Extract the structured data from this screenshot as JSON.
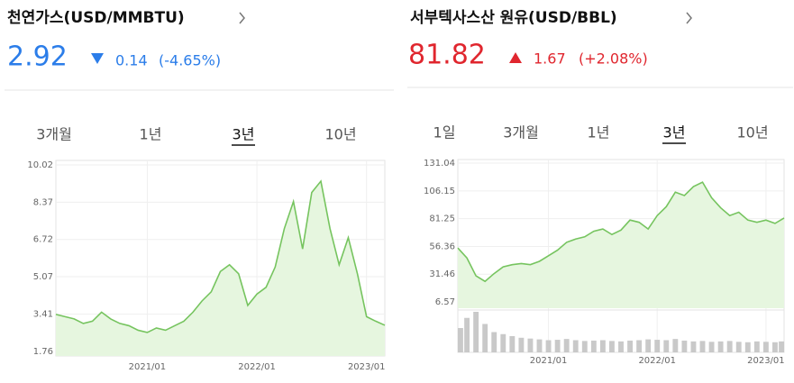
{
  "chart_data": [
    {
      "type": "line",
      "title": "천연가스(USD/MMBTU)",
      "price": 2.92,
      "change": 0.14,
      "change_pct": "(-4.65%)",
      "tabs": [
        "3개월",
        "1년",
        "3년",
        "10년"
      ],
      "selected_tab": 2,
      "color": "#76c45f",
      "area_color": "#e6f6df",
      "price_color": "#2b7de9",
      "x": [
        "2020/03",
        "2020/04",
        "2020/05",
        "2020/06",
        "2020/07",
        "2020/08",
        "2020/09",
        "2020/10",
        "2020/11",
        "2020/12",
        "2021/01",
        "2021/02",
        "2021/03",
        "2021/04",
        "2021/05",
        "2021/06",
        "2021/07",
        "2021/08",
        "2021/09",
        "2021/10",
        "2021/11",
        "2021/12",
        "2022/01",
        "2022/02",
        "2022/03",
        "2022/04",
        "2022/05",
        "2022/06",
        "2022/07",
        "2022/08",
        "2022/09",
        "2022/10",
        "2022/11",
        "2022/12",
        "2023/01",
        "2023/02",
        "2023/03"
      ],
      "values": [
        3.4,
        3.3,
        3.2,
        3.0,
        3.1,
        3.5,
        3.2,
        3.0,
        2.9,
        2.7,
        2.6,
        2.8,
        2.7,
        2.9,
        3.1,
        3.5,
        4.0,
        4.4,
        5.3,
        5.6,
        5.2,
        3.8,
        4.3,
        4.6,
        5.5,
        7.2,
        8.4,
        6.3,
        8.8,
        9.3,
        7.2,
        5.6,
        6.8,
        5.2,
        3.3,
        3.1,
        2.92
      ],
      "xlim": [
        "2020/03",
        "2023/03"
      ],
      "xticks": [
        "2021/01",
        "2022/01",
        "2023/01"
      ],
      "ylim": [
        1.56,
        10.22
      ],
      "yticks": [
        1.76,
        3.41,
        5.07,
        6.72,
        8.37,
        10.02
      ],
      "grid": true
    },
    {
      "type": "line",
      "title": "서부텍사스산 원유(USD/BBL)",
      "price": 81.82,
      "change": 1.67,
      "change_pct": "(+2.08%)",
      "tabs": [
        "1일",
        "3개월",
        "1년",
        "3년",
        "10년"
      ],
      "selected_tab": 3,
      "color": "#76c45f",
      "area_color": "#e6f6df",
      "price_color": "#e0262e",
      "x": [
        "2020/03",
        "2020/04",
        "2020/05",
        "2020/06",
        "2020/07",
        "2020/08",
        "2020/09",
        "2020/10",
        "2020/11",
        "2020/12",
        "2021/01",
        "2021/02",
        "2021/03",
        "2021/04",
        "2021/05",
        "2021/06",
        "2021/07",
        "2021/08",
        "2021/09",
        "2021/10",
        "2021/11",
        "2021/12",
        "2022/01",
        "2022/02",
        "2022/03",
        "2022/04",
        "2022/05",
        "2022/06",
        "2022/07",
        "2022/08",
        "2022/09",
        "2022/10",
        "2022/11",
        "2022/12",
        "2023/01",
        "2023/02",
        "2023/03"
      ],
      "values": [
        55,
        46,
        30,
        25,
        32,
        38,
        40,
        41,
        40,
        43,
        48,
        53,
        60,
        63,
        65,
        70,
        72,
        67,
        71,
        80,
        78,
        72,
        84,
        92,
        105,
        102,
        110,
        114,
        100,
        91,
        84,
        87,
        80,
        78,
        80,
        77,
        81.82
      ],
      "volume": [
        60,
        85,
        100,
        70,
        50,
        45,
        40,
        36,
        34,
        32,
        30,
        31,
        33,
        30,
        28,
        29,
        30,
        28,
        27,
        29,
        30,
        32,
        31,
        30,
        33,
        29,
        27,
        28,
        26,
        27,
        28,
        26,
        25,
        27,
        26,
        25,
        27
      ],
      "volume_color": "#c9c9c9",
      "xlim": [
        "2020/03",
        "2023/03"
      ],
      "xticks": [
        "2021/01",
        "2022/01",
        "2023/01"
      ],
      "ylim": [
        0.95,
        134.3
      ],
      "yticks": [
        6.57,
        31.46,
        56.36,
        81.25,
        106.15,
        131.04
      ],
      "grid": true
    }
  ]
}
